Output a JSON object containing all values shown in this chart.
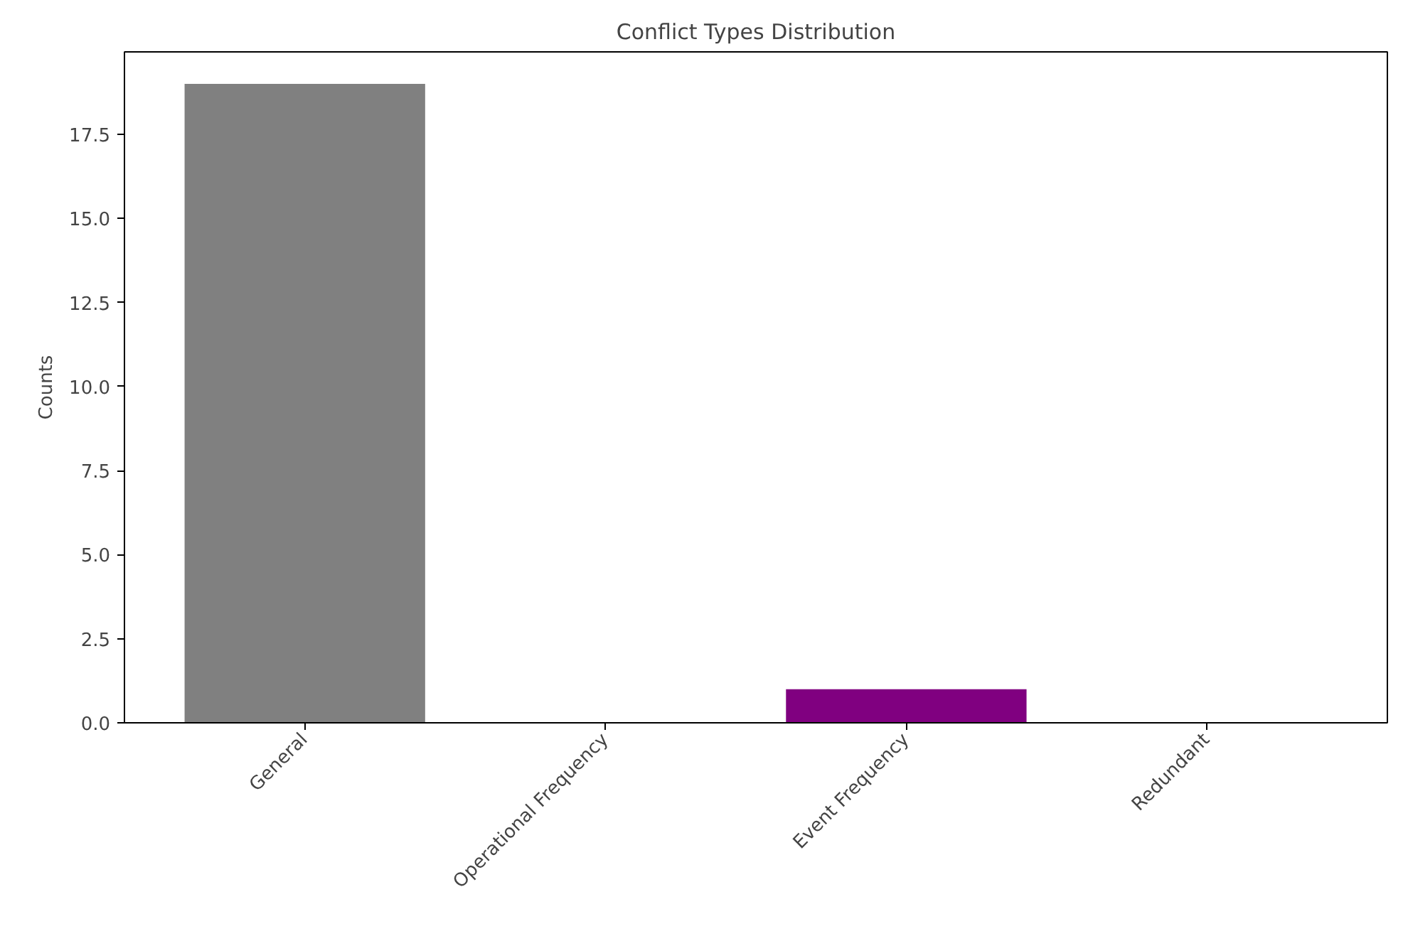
{
  "chart_data": {
    "type": "bar",
    "title": "Conflict Types Distribution",
    "ylabel": "Counts",
    "categories": [
      "General",
      "Operational Frequency",
      "Event Frequency",
      "Redundant"
    ],
    "values": [
      19,
      0,
      1,
      0
    ],
    "colors": [
      "#808080",
      null,
      "#800080",
      null
    ],
    "ylim": [
      0,
      19.95
    ],
    "yticks": [
      {
        "value": 0,
        "label": "0.0"
      },
      2.5,
      {
        "value": 5,
        "label": "5.0"
      },
      7.5,
      {
        "value": 10,
        "label": "10.0"
      },
      12.5,
      {
        "value": 15,
        "label": "15.0"
      },
      17.5
    ],
    "grid": false
  }
}
